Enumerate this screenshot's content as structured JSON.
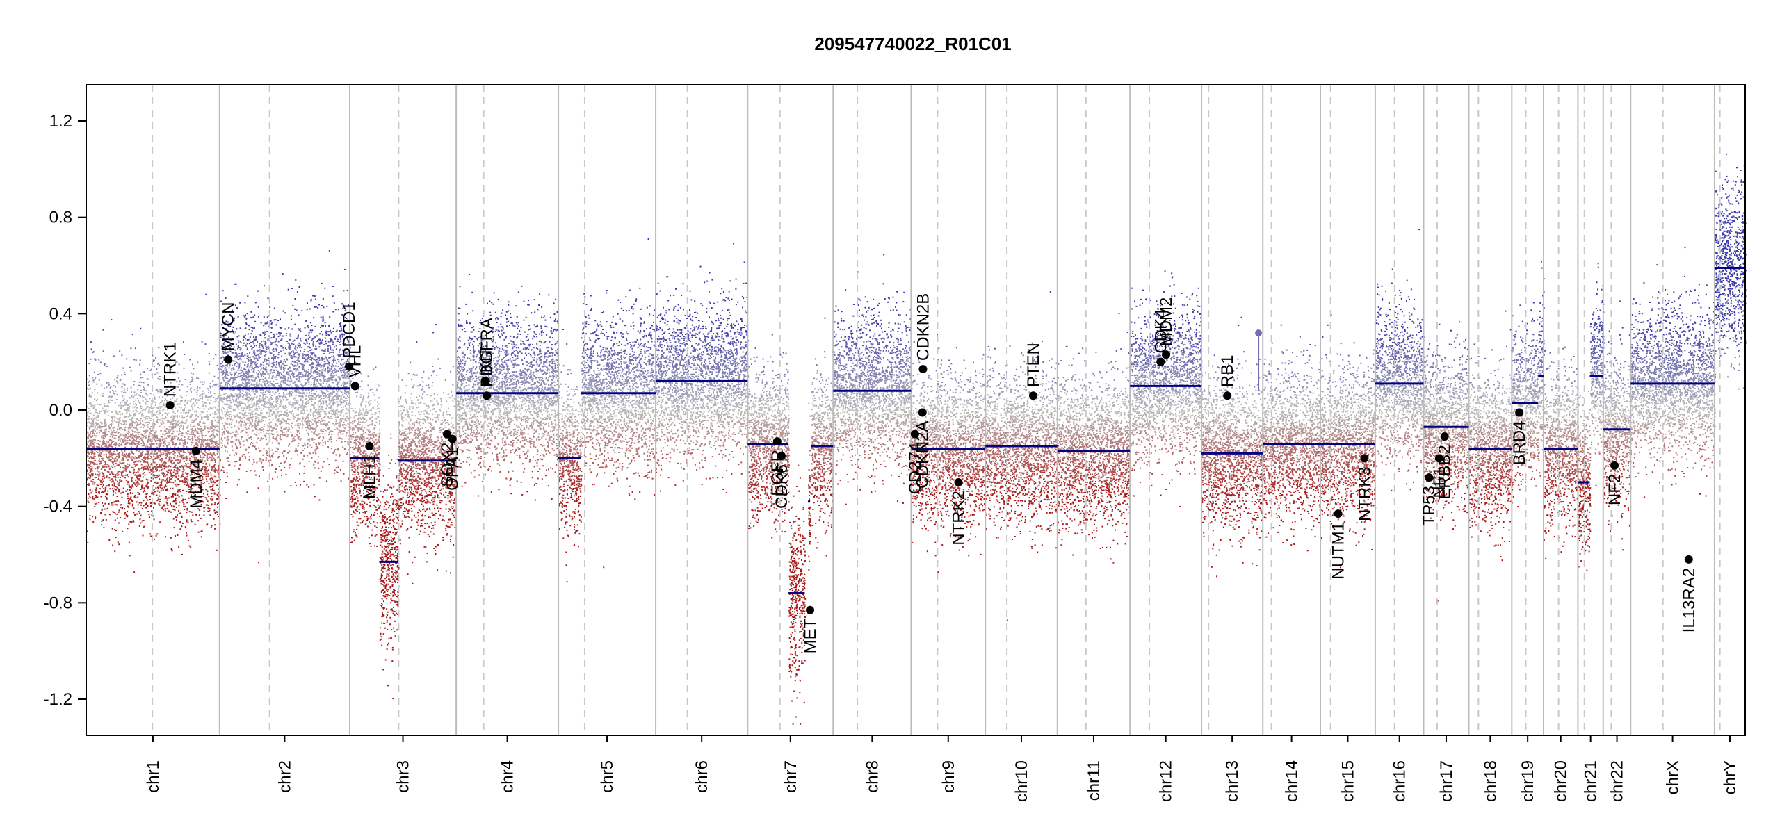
{
  "chart_data": {
    "type": "scatter",
    "title": "209547740022_R01C01",
    "xlabel": "",
    "ylabel": "",
    "ylim": [
      -1.35,
      1.35
    ],
    "y_ticks": [
      1.2,
      0.8,
      0.4,
      0.0,
      -0.4,
      -0.8,
      -1.2
    ],
    "y_tick_labels": [
      "1.2",
      "0.8",
      "0.4",
      "0.0",
      "-0.4",
      "-0.8",
      "-1.2"
    ],
    "chromosomes": [
      {
        "name": "chr1",
        "start": 0,
        "end": 248,
        "centromere": 123
      },
      {
        "name": "chr2",
        "start": 248,
        "end": 490,
        "centromere": 341
      },
      {
        "name": "chr3",
        "start": 490,
        "end": 688,
        "centromere": 581
      },
      {
        "name": "chr4",
        "start": 688,
        "end": 878,
        "centromere": 739
      },
      {
        "name": "chr5",
        "start": 878,
        "end": 1059,
        "centromere": 927
      },
      {
        "name": "chr6",
        "start": 1059,
        "end": 1230,
        "centromere": 1118
      },
      {
        "name": "chr7",
        "start": 1230,
        "end": 1389,
        "centromere": 1290
      },
      {
        "name": "chr8",
        "start": 1389,
        "end": 1534,
        "centromere": 1434
      },
      {
        "name": "chr9",
        "start": 1534,
        "end": 1672,
        "centromere": 1583
      },
      {
        "name": "chr10",
        "start": 1672,
        "end": 1806,
        "centromere": 1712
      },
      {
        "name": "chr11",
        "start": 1806,
        "end": 1941,
        "centromere": 1859
      },
      {
        "name": "chr12",
        "start": 1941,
        "end": 2074,
        "centromere": 1977
      },
      {
        "name": "chr13",
        "start": 2074,
        "end": 2188,
        "centromere": 2087
      },
      {
        "name": "chr14",
        "start": 2188,
        "end": 2295,
        "centromere": 2204
      },
      {
        "name": "chr15",
        "start": 2295,
        "end": 2397,
        "centromere": 2314
      },
      {
        "name": "chr16",
        "start": 2397,
        "end": 2487,
        "centromere": 2433
      },
      {
        "name": "chr17",
        "start": 2487,
        "end": 2571,
        "centromere": 2512
      },
      {
        "name": "chr18",
        "start": 2571,
        "end": 2651,
        "centromere": 2589
      },
      {
        "name": "chr19",
        "start": 2651,
        "end": 2710,
        "centromere": 2677
      },
      {
        "name": "chr20",
        "start": 2710,
        "end": 2774,
        "centromere": 2738
      },
      {
        "name": "chr21",
        "start": 2774,
        "end": 2821,
        "centromere": 2786
      },
      {
        "name": "chr22",
        "start": 2821,
        "end": 2872,
        "centromere": 2836
      },
      {
        "name": "chrX",
        "start": 2872,
        "end": 3028,
        "centromere": 2932
      },
      {
        "name": "chrY",
        "start": 3028,
        "end": 3085,
        "centromere": 3038
      }
    ],
    "segments": [
      {
        "start": 0,
        "end": 248,
        "value": -0.16
      },
      {
        "start": 248,
        "end": 490,
        "value": 0.09
      },
      {
        "start": 490,
        "end": 545,
        "value": -0.2
      },
      {
        "start": 545,
        "end": 580,
        "value": -0.63
      },
      {
        "start": 580,
        "end": 688,
        "value": -0.21
      },
      {
        "start": 688,
        "end": 878,
        "value": 0.07
      },
      {
        "start": 878,
        "end": 920,
        "value": -0.2
      },
      {
        "start": 920,
        "end": 1059,
        "value": 0.07
      },
      {
        "start": 1059,
        "end": 1230,
        "value": 0.12
      },
      {
        "start": 1230,
        "end": 1306,
        "value": -0.14
      },
      {
        "start": 1306,
        "end": 1336,
        "value": -0.76
      },
      {
        "start": 1342,
        "end": 1346,
        "value": -0.38
      },
      {
        "start": 1348,
        "end": 1389,
        "value": -0.15
      },
      {
        "start": 1389,
        "end": 1534,
        "value": 0.08
      },
      {
        "start": 1534,
        "end": 1672,
        "value": -0.16
      },
      {
        "start": 1672,
        "end": 1806,
        "value": -0.15
      },
      {
        "start": 1806,
        "end": 1941,
        "value": -0.17
      },
      {
        "start": 1941,
        "end": 2074,
        "value": 0.1
      },
      {
        "start": 2074,
        "end": 2188,
        "value": -0.18
      },
      {
        "start": 2188,
        "end": 2295,
        "value": -0.14
      },
      {
        "start": 2295,
        "end": 2397,
        "value": -0.14
      },
      {
        "start": 2397,
        "end": 2487,
        "value": 0.11
      },
      {
        "start": 2487,
        "end": 2571,
        "value": -0.07
      },
      {
        "start": 2571,
        "end": 2651,
        "value": -0.16
      },
      {
        "start": 2651,
        "end": 2700,
        "value": 0.03
      },
      {
        "start": 2700,
        "end": 2710,
        "value": 0.14
      },
      {
        "start": 2710,
        "end": 2774,
        "value": -0.16
      },
      {
        "start": 2774,
        "end": 2796,
        "value": -0.3
      },
      {
        "start": 2796,
        "end": 2821,
        "value": 0.14
      },
      {
        "start": 2821,
        "end": 2872,
        "value": -0.08
      },
      {
        "start": 2872,
        "end": 3028,
        "value": 0.11
      },
      {
        "start": 3028,
        "end": 3085,
        "value": 0.59
      }
    ],
    "genes": [
      {
        "name": "NTRK1",
        "pos": 156,
        "value": 0.02,
        "label_side": "above"
      },
      {
        "name": "MDM4",
        "pos": 204,
        "value": -0.17,
        "label_side": "below"
      },
      {
        "name": "MYCN",
        "pos": 264,
        "value": 0.21,
        "label_side": "above"
      },
      {
        "name": "PDCD1",
        "pos": 489,
        "value": 0.18,
        "label_side": "above"
      },
      {
        "name": "VHL",
        "pos": 500,
        "value": 0.1,
        "label_side": "above"
      },
      {
        "name": "MLH1",
        "pos": 527,
        "value": -0.15,
        "label_side": "below"
      },
      {
        "name": "SOX2",
        "pos": 671,
        "value": -0.1,
        "label_side": "below"
      },
      {
        "name": "OPA1",
        "pos": 681,
        "value": -0.12,
        "label_side": "below"
      },
      {
        "name": "KIT",
        "pos": 743,
        "value": 0.12,
        "label_side": "above"
      },
      {
        "name": "PDGFRA",
        "pos": 745,
        "value": 0.06,
        "label_side": "above"
      },
      {
        "name": "EGFR",
        "pos": 1285,
        "value": -0.13,
        "label_side": "below"
      },
      {
        "name": "CDK6",
        "pos": 1293,
        "value": -0.19,
        "label_side": "below"
      },
      {
        "name": "MET",
        "pos": 1346,
        "value": -0.83,
        "label_side": "below"
      },
      {
        "name": "CDKN2B",
        "pos": 1556,
        "value": 0.17,
        "label_side": "above"
      },
      {
        "name": "CD274",
        "pos": 1541,
        "value": -0.1,
        "label_side": "below"
      },
      {
        "name": "CDKN2A",
        "pos": 1555,
        "value": -0.01,
        "label_side": "below"
      },
      {
        "name": "NTRK2",
        "pos": 1622,
        "value": -0.3,
        "label_side": "below"
      },
      {
        "name": "PTEN",
        "pos": 1761,
        "value": 0.06,
        "label_side": "above"
      },
      {
        "name": "CDK4",
        "pos": 1998,
        "value": 0.2,
        "label_side": "above"
      },
      {
        "name": "MDM2",
        "pos": 2008,
        "value": 0.23,
        "label_side": "above"
      },
      {
        "name": "RB1",
        "pos": 2122,
        "value": 0.06,
        "label_side": "above"
      },
      {
        "name": "NUTM1",
        "pos": 2328,
        "value": -0.43,
        "label_side": "below"
      },
      {
        "name": "NTRK3",
        "pos": 2377,
        "value": -0.2,
        "label_side": "below"
      },
      {
        "name": "TP53",
        "pos": 2497,
        "value": -0.28,
        "label_side": "below"
      },
      {
        "name": "NF1",
        "pos": 2516,
        "value": -0.2,
        "label_side": "below"
      },
      {
        "name": "ERBB2",
        "pos": 2526,
        "value": -0.11,
        "label_side": "below"
      },
      {
        "name": "BRD4",
        "pos": 2665,
        "value": -0.01,
        "label_side": "below"
      },
      {
        "name": "NF2",
        "pos": 2842,
        "value": -0.23,
        "label_side": "below"
      },
      {
        "name": "IL13RA2",
        "pos": 2980,
        "value": -0.62,
        "label_side": "below"
      }
    ],
    "highlight_point": {
      "pos": 2180,
      "value": 0.32
    },
    "colors": {
      "gain": "#3a3aa8",
      "neutral": "#b8b8b8",
      "loss": "#a81818",
      "segment": "#000080",
      "gene_point": "#000000",
      "highlight": "#7070b0",
      "boundary": "#bcbcbc",
      "centromere": "#c8c8c8"
    },
    "grid": false,
    "legend": "none"
  }
}
